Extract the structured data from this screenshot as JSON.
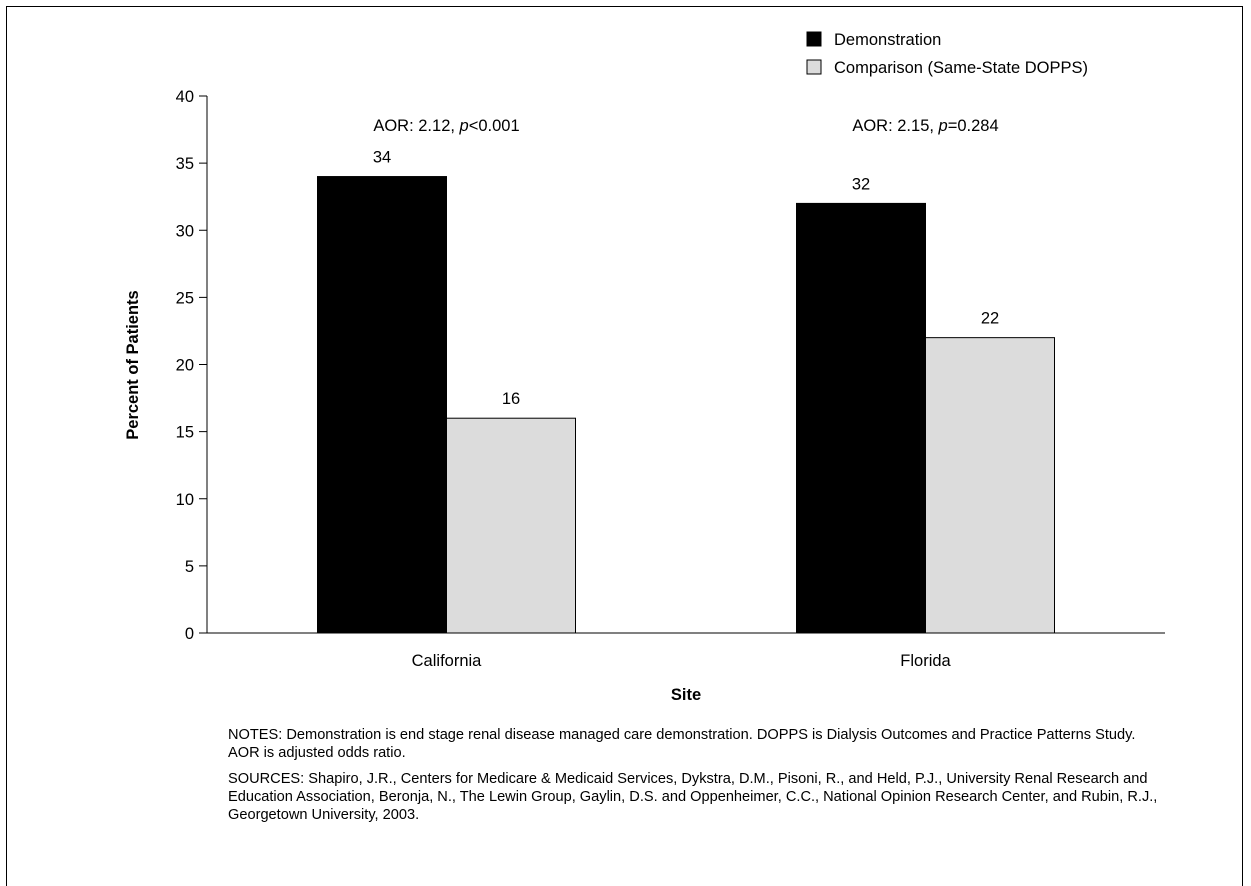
{
  "chart_data": {
    "type": "bar",
    "categories": [
      "California",
      "Florida"
    ],
    "series": [
      {
        "name": "Demonstration",
        "values": [
          34,
          32
        ],
        "color": "#000000"
      },
      {
        "name": "Comparison (Same-State DOPPS)",
        "values": [
          16,
          22
        ],
        "color": "#dcdcdc"
      }
    ],
    "data_labels": [
      [
        "34",
        "32"
      ],
      [
        "16",
        "22"
      ]
    ],
    "annotations": [
      {
        "prefix": "AOR: 2.12, ",
        "italic": "p",
        "suffix": "<0.001"
      },
      {
        "prefix": "AOR: 2.15, ",
        "italic": "p",
        "suffix": "=0.284"
      }
    ],
    "xlabel": "Site",
    "ylabel": "Percent of Patients",
    "ylim": [
      0,
      40
    ],
    "yticks": [
      "0",
      "5",
      "10",
      "15",
      "20",
      "25",
      "30",
      "35",
      "40"
    ],
    "legend_position": "top-right",
    "grid": false
  },
  "notes": {
    "notes_text": "NOTES: Demonstration is end stage renal disease managed care demonstration. DOPPS is Dialysis Outcomes and Practice Patterns Study. AOR is adjusted odds ratio.",
    "sources_text": "SOURCES: Shapiro, J.R., Centers for Medicare & Medicaid Services, Dykstra, D.M., Pisoni, R., and Held, P.J., University Renal Research and Education Association, Beronja, N., The Lewin Group, Gaylin, D.S. and Oppenheimer, C.C., National Opinion Research Center, and Rubin, R.J., Georgetown University, 2003."
  }
}
